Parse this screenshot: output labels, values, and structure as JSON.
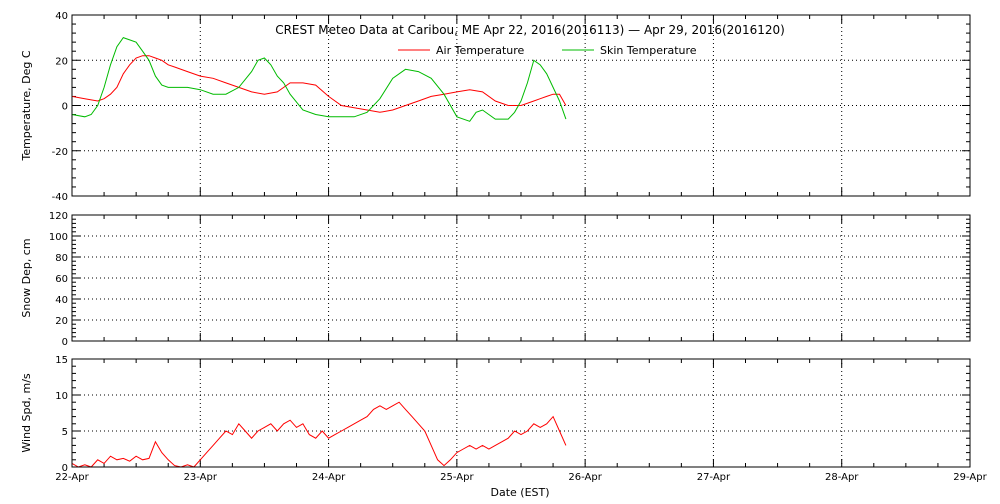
{
  "chart_data": {
    "type": "line",
    "title": "CREST Meteo Data at Caribou, ME   Apr 22, 2016(2016113) — Apr 29, 2016(2016120)",
    "xlabel": "Date (EST)",
    "x_tick_labels": [
      "22-Apr",
      "23-Apr",
      "24-Apr",
      "25-Apr",
      "26-Apr",
      "27-Apr",
      "28-Apr",
      "29-Apr"
    ],
    "xlim": [
      0,
      7
    ],
    "grid": true,
    "colors": {
      "air": "#ff0000",
      "skin": "#00bb00",
      "wind": "#ff0000",
      "axes": "#000000"
    },
    "panels": [
      {
        "ylabel": "Temperature, Deg C",
        "ylim": [
          -40,
          40
        ],
        "y_ticks": [
          -40,
          -20,
          0,
          20,
          40
        ],
        "legend": {
          "placement": "top-center",
          "entries": [
            "Air Temperature",
            "Skin Temperature"
          ]
        },
        "series": [
          {
            "name": "Air Temperature",
            "color": "#ff0000",
            "x": [
              0,
              0.1,
              0.2,
              0.25,
              0.3,
              0.35,
              0.4,
              0.45,
              0.5,
              0.55,
              0.6,
              0.65,
              0.7,
              0.75,
              0.8,
              0.9,
              1.0,
              1.1,
              1.2,
              1.3,
              1.4,
              1.5,
              1.6,
              1.65,
              1.7,
              1.8,
              1.9,
              2.0,
              2.1,
              2.2,
              2.3,
              2.4,
              2.5,
              2.6,
              2.7,
              2.8,
              2.9,
              3.0,
              3.1,
              3.2,
              3.3,
              3.4,
              3.5,
              3.6,
              3.65,
              3.7,
              3.75,
              3.8,
              3.85
            ],
            "y": [
              4,
              3,
              2,
              3,
              5,
              8,
              14,
              18,
              21,
              22,
              22,
              21,
              20,
              18,
              17,
              15,
              13,
              12,
              10,
              8,
              6,
              5,
              6,
              8,
              10,
              10,
              9,
              4,
              0,
              -1,
              -2,
              -3,
              -2,
              0,
              2,
              4,
              5,
              6,
              7,
              6,
              2,
              0,
              0,
              2,
              3,
              4,
              5,
              5,
              0
            ]
          },
          {
            "name": "Skin Temperature",
            "color": "#00bb00",
            "x": [
              0,
              0.1,
              0.15,
              0.2,
              0.25,
              0.3,
              0.35,
              0.4,
              0.45,
              0.5,
              0.55,
              0.6,
              0.65,
              0.7,
              0.75,
              0.8,
              0.9,
              1.0,
              1.1,
              1.2,
              1.3,
              1.4,
              1.45,
              1.5,
              1.55,
              1.6,
              1.65,
              1.7,
              1.8,
              1.9,
              2.0,
              2.1,
              2.2,
              2.3,
              2.4,
              2.5,
              2.6,
              2.7,
              2.8,
              2.9,
              3.0,
              3.1,
              3.15,
              3.2,
              3.3,
              3.4,
              3.45,
              3.5,
              3.55,
              3.6,
              3.65,
              3.7,
              3.75,
              3.8,
              3.85
            ],
            "y": [
              -4,
              -5,
              -4,
              0,
              8,
              18,
              26,
              30,
              29,
              28,
              24,
              20,
              13,
              9,
              8,
              8,
              8,
              7,
              5,
              5,
              8,
              15,
              20,
              21,
              18,
              13,
              10,
              5,
              -2,
              -4,
              -5,
              -5,
              -5,
              -3,
              3,
              12,
              16,
              15,
              12,
              5,
              -5,
              -7,
              -3,
              -2,
              -6,
              -6,
              -3,
              2,
              10,
              20,
              18,
              14,
              8,
              2,
              -6
            ]
          }
        ]
      },
      {
        "ylabel": "Snow Dep, cm",
        "ylim": [
          0,
          120
        ],
        "y_ticks": [
          0,
          20,
          40,
          60,
          80,
          100,
          120
        ],
        "series": []
      },
      {
        "ylabel": "Wind Spd, m/s",
        "ylim": [
          0,
          15
        ],
        "y_ticks": [
          0,
          5,
          10,
          15
        ],
        "series": [
          {
            "name": "",
            "color": "#ff0000",
            "x": [
              0,
              0.05,
              0.1,
              0.15,
              0.2,
              0.25,
              0.3,
              0.35,
              0.4,
              0.45,
              0.5,
              0.55,
              0.6,
              0.65,
              0.7,
              0.75,
              0.8,
              0.85,
              0.9,
              0.95,
              1.0,
              1.05,
              1.1,
              1.15,
              1.2,
              1.25,
              1.3,
              1.35,
              1.4,
              1.45,
              1.5,
              1.55,
              1.6,
              1.65,
              1.7,
              1.75,
              1.8,
              1.85,
              1.9,
              1.95,
              2.0,
              2.05,
              2.1,
              2.15,
              2.2,
              2.25,
              2.3,
              2.35,
              2.4,
              2.45,
              2.5,
              2.55,
              2.6,
              2.65,
              2.7,
              2.75,
              2.8,
              2.85,
              2.9,
              2.95,
              3.0,
              3.05,
              3.1,
              3.15,
              3.2,
              3.25,
              3.3,
              3.35,
              3.4,
              3.45,
              3.5,
              3.55,
              3.6,
              3.65,
              3.7,
              3.75,
              3.8,
              3.85
            ],
            "y": [
              0.5,
              0,
              0.3,
              0,
              1,
              0.5,
              1.5,
              1,
              1.2,
              0.8,
              1.5,
              1,
              1.2,
              3.5,
              2,
              1,
              0.2,
              0,
              0.3,
              0,
              1,
              2,
              3,
              4,
              5,
              4.5,
              6,
              5,
              4,
              5,
              5.5,
              6,
              5,
              6,
              6.5,
              5.5,
              6,
              4.5,
              4,
              5,
              4,
              4.5,
              5,
              5.5,
              6,
              6.5,
              7,
              8,
              8.5,
              8,
              8.5,
              9,
              8,
              7,
              6,
              5,
              3,
              1,
              0.2,
              1,
              2,
              2.5,
              3,
              2.5,
              3,
              2.5,
              3,
              3.5,
              4,
              5,
              4.5,
              5,
              6,
              5.5,
              6,
              7,
              5,
              3
            ]
          }
        ]
      }
    ]
  }
}
